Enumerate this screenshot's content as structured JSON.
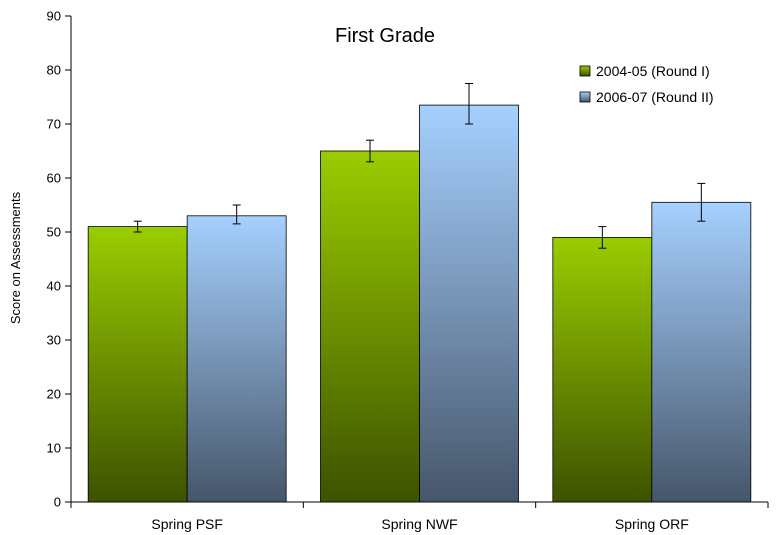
{
  "chart_data": {
    "type": "bar",
    "title": "First Grade",
    "xlabel": "",
    "ylabel": "Score on Assessments",
    "ylim": [
      0,
      90
    ],
    "yticks": [
      0,
      10,
      20,
      30,
      40,
      50,
      60,
      70,
      80,
      90
    ],
    "categories": [
      "Spring PSF",
      "Spring NWF",
      "Spring ORF"
    ],
    "series": [
      {
        "name": "2004-05 (Round I)",
        "values": [
          51,
          65,
          49
        ],
        "error_low": [
          50,
          63,
          47
        ],
        "error_high": [
          52,
          67,
          51
        ],
        "color_top": "#9acd00",
        "color_bottom": "#3d5200"
      },
      {
        "name": "2006-07 (Round II)",
        "values": [
          53,
          73.5,
          55.5
        ],
        "error_low": [
          51.5,
          70,
          52
        ],
        "error_high": [
          55,
          77.5,
          59
        ],
        "color_top": "#a6d0ff",
        "color_bottom": "#46566a"
      }
    ],
    "legend": "top-right",
    "grid": false
  }
}
